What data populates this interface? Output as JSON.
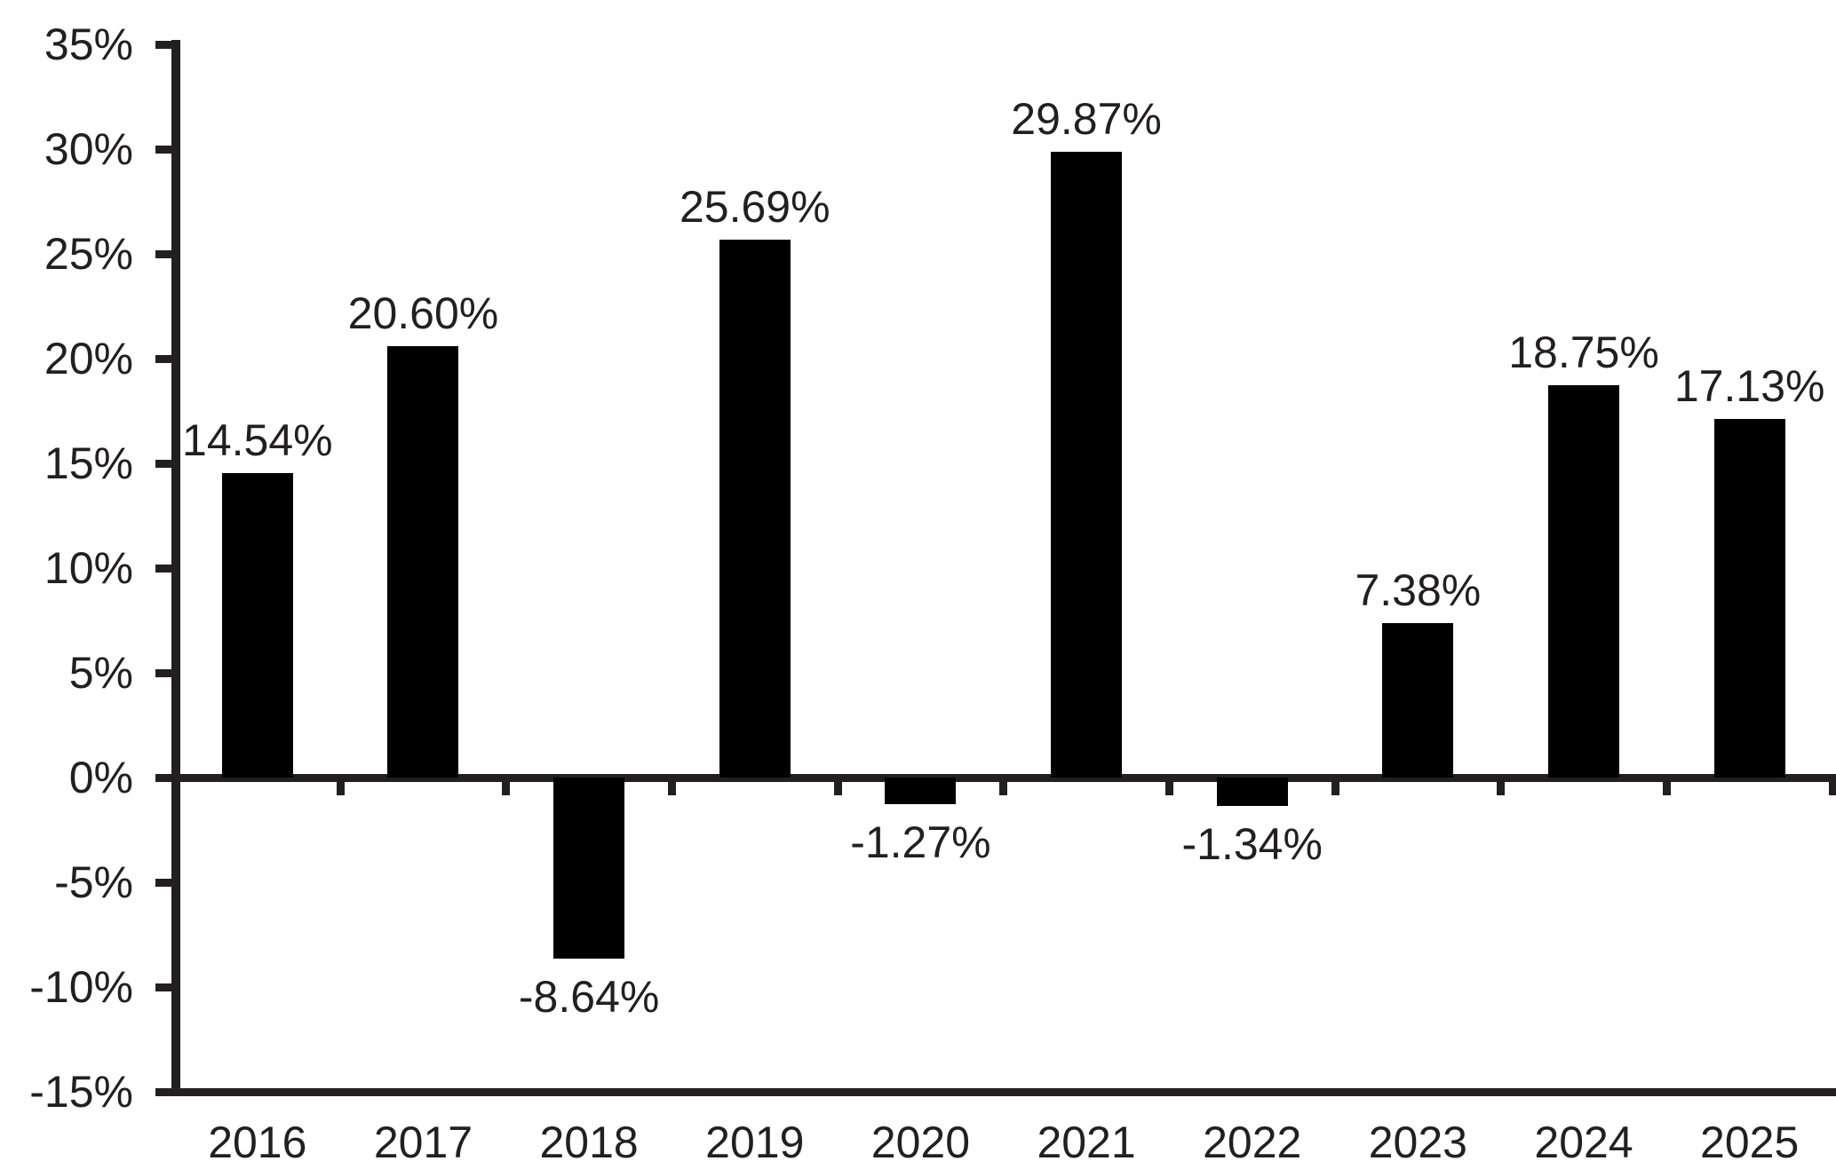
{
  "chart_data": {
    "type": "bar",
    "categories": [
      "2016",
      "2017",
      "2018",
      "2019",
      "2020",
      "2021",
      "2022",
      "2023",
      "2024",
      "2025"
    ],
    "values": [
      14.54,
      20.6,
      -8.64,
      25.69,
      -1.27,
      29.87,
      -1.34,
      7.38,
      18.75,
      17.13
    ],
    "value_labels": [
      "14.54%",
      "20.60%",
      "-8.64%",
      "25.69%",
      "-1.27%",
      "29.87%",
      "-1.34%",
      "7.38%",
      "18.75%",
      "17.13%"
    ],
    "title": "",
    "xlabel": "",
    "ylabel": "",
    "ylim": [
      -15,
      35
    ],
    "ytick_step": 5,
    "ytick_labels": [
      "35%",
      "30%",
      "25%",
      "20%",
      "15%",
      "10%",
      "5%",
      "0%",
      "-5%",
      "-10%",
      "-15%"
    ],
    "grid": false,
    "legend": false,
    "bar_color": "#000000",
    "axis_color": "#231f20",
    "text_color": "#231f20",
    "background_color": "#ffffff"
  }
}
